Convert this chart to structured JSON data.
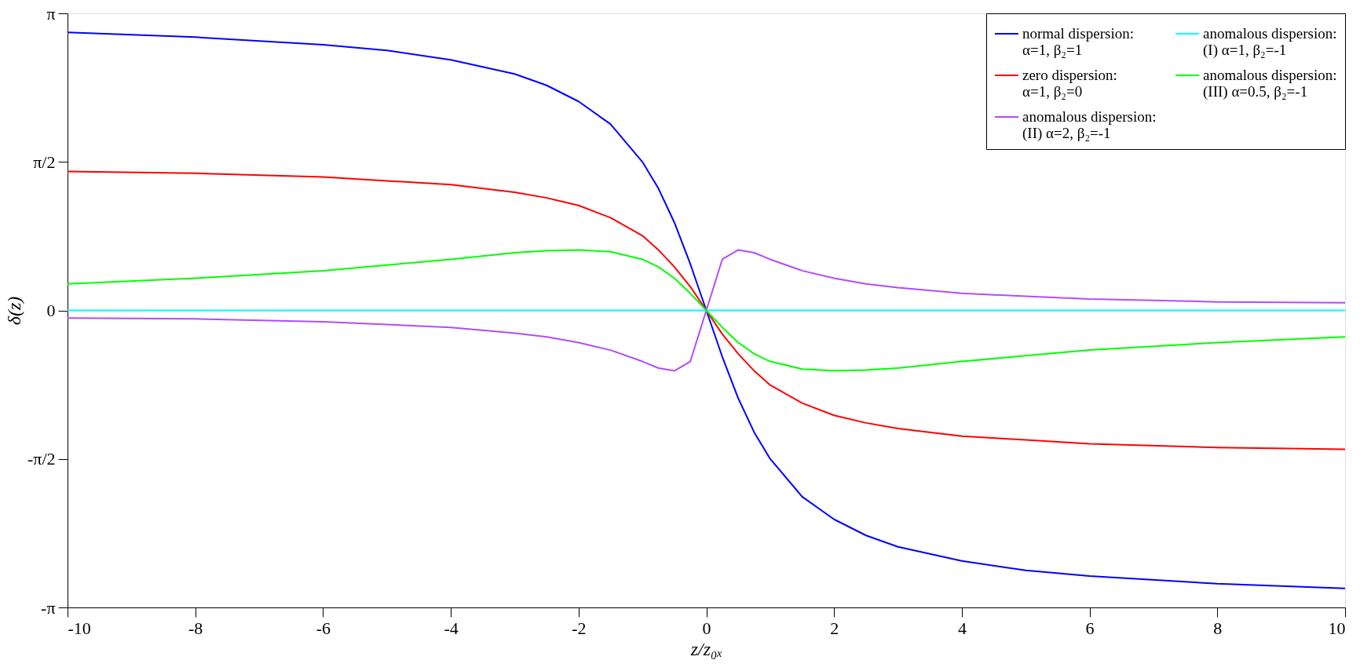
{
  "chart_data": {
    "type": "line",
    "xlabel": "z/z₀ₓ",
    "ylabel": "δ(z)",
    "x": [
      -10,
      -8,
      -6,
      -5,
      -4,
      -3,
      -2.5,
      -2,
      -1.5,
      -1,
      -0.75,
      -0.5,
      -0.25,
      0,
      0.25,
      0.5,
      0.75,
      1,
      1.5,
      2,
      2.5,
      3,
      4,
      5,
      6,
      8,
      10
    ],
    "series": [
      {
        "name": "normal dispersion: α=1, β₂=1",
        "color": "#0000ff",
        "values": [
          2.94,
          2.89,
          2.81,
          2.75,
          2.65,
          2.5,
          2.38,
          2.21,
          1.97,
          1.57,
          1.29,
          0.93,
          0.49,
          0,
          -0.49,
          -0.93,
          -1.29,
          -1.57,
          -1.97,
          -2.21,
          -2.38,
          -2.5,
          -2.65,
          -2.75,
          -2.81,
          -2.89,
          -2.94
        ]
      },
      {
        "name": "zero dispersion: α=1, β₂=0",
        "color": "#ff0000",
        "values": [
          1.47,
          1.45,
          1.41,
          1.37,
          1.33,
          1.25,
          1.19,
          1.11,
          0.98,
          0.79,
          0.64,
          0.46,
          0.25,
          0,
          -0.25,
          -0.46,
          -0.64,
          -0.79,
          -0.98,
          -1.11,
          -1.19,
          -1.25,
          -1.33,
          -1.37,
          -1.41,
          -1.45,
          -1.47
        ]
      },
      {
        "name": "anomalous dispersion: (II) α=2, β₂=-1",
        "color": "#b04cff",
        "values": [
          -0.08,
          -0.09,
          -0.12,
          -0.15,
          -0.18,
          -0.24,
          -0.28,
          -0.34,
          -0.42,
          -0.54,
          -0.61,
          -0.64,
          -0.54,
          0,
          0.54,
          0.64,
          0.61,
          0.54,
          0.42,
          0.34,
          0.28,
          0.24,
          0.18,
          0.15,
          0.12,
          0.09,
          0.08
        ]
      },
      {
        "name": "anomalous dispersion: (I) α=1, β₂=-1",
        "color": "#00ffff",
        "values": [
          0,
          0,
          0,
          0,
          0,
          0,
          0,
          0,
          0,
          0,
          0,
          0,
          0,
          0,
          0,
          0,
          0,
          0,
          0,
          0,
          0,
          0,
          0,
          0,
          0,
          0,
          0
        ]
      },
      {
        "name": "anomalous dispersion: (III) α=0.5, β₂=-1",
        "color": "#00ff00",
        "values": [
          0.28,
          0.34,
          0.42,
          0.48,
          0.54,
          0.61,
          0.63,
          0.64,
          0.62,
          0.54,
          0.46,
          0.34,
          0.18,
          0,
          -0.18,
          -0.34,
          -0.46,
          -0.54,
          -0.62,
          -0.64,
          -0.63,
          -0.61,
          -0.54,
          -0.48,
          -0.42,
          -0.34,
          -0.28
        ]
      }
    ],
    "xlim": [
      -10,
      10
    ],
    "xticks": [
      -10,
      -8,
      -6,
      -4,
      -2,
      0,
      2,
      4,
      6,
      8,
      10
    ],
    "ylim": [
      -3.1416,
      3.1416
    ],
    "yticks": [
      {
        "value": -3.1416,
        "label": "-π"
      },
      {
        "value": -1.5708,
        "label": "-π/2"
      },
      {
        "value": 0,
        "label": "0"
      },
      {
        "value": 1.5708,
        "label": "π/2"
      },
      {
        "value": 3.1416,
        "label": "π"
      }
    ],
    "legend": "top right",
    "grid": false,
    "marker": "none",
    "line_style": "solid"
  }
}
